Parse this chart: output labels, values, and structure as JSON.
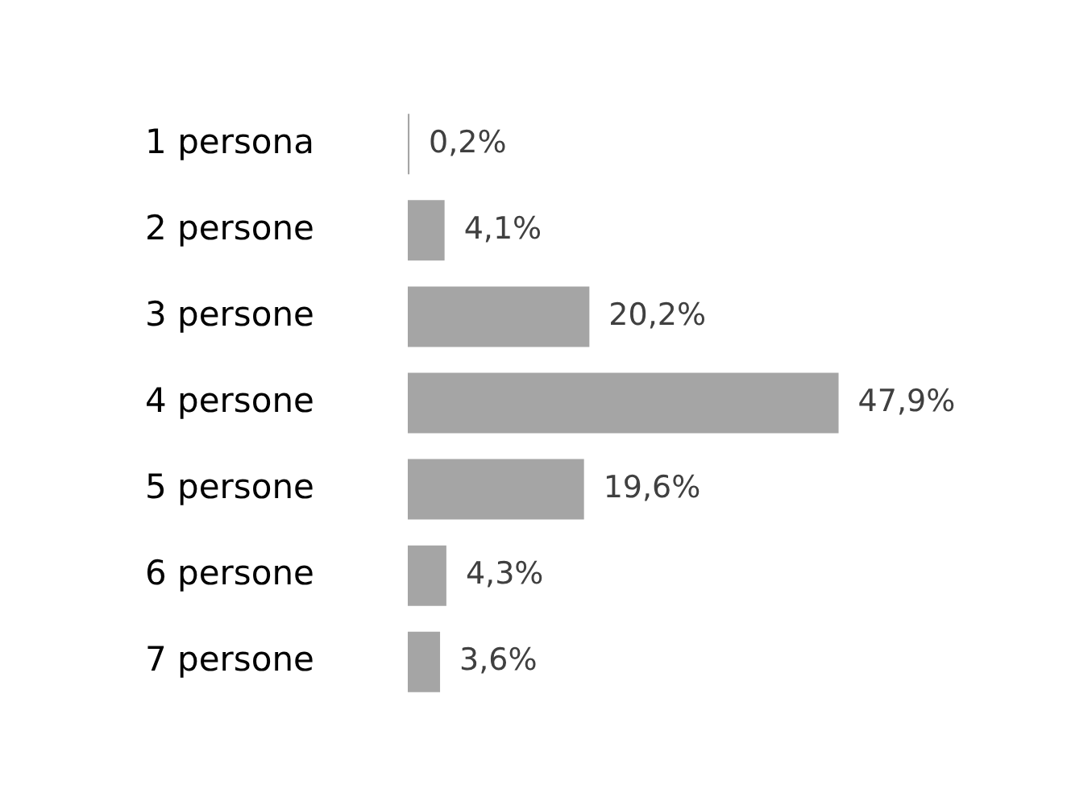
{
  "chart_data": {
    "type": "bar",
    "orientation": "horizontal",
    "categories": [
      "1 persona",
      "2 persone",
      "3 persone",
      "4 persone",
      "5 persone",
      "6 persone",
      "7 persone"
    ],
    "values": [
      0.2,
      4.1,
      20.2,
      47.9,
      19.6,
      4.3,
      3.6
    ],
    "value_labels": [
      "0,2%",
      "4,1%",
      "20,2%",
      "47,9%",
      "19,6%",
      "4,3%",
      "3,6%"
    ],
    "color": "#a5a5a5",
    "legend": false,
    "tick_labels": "y"
  }
}
